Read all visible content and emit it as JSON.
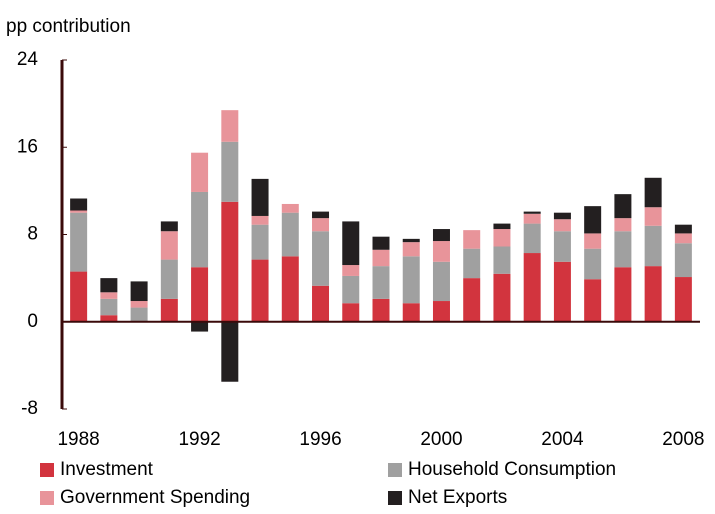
{
  "chart_data": {
    "type": "stacked_bar",
    "title": "pp contribution",
    "x": [
      1988,
      1989,
      1990,
      1991,
      1992,
      1993,
      1994,
      1995,
      1996,
      1997,
      1998,
      1999,
      2000,
      2001,
      2002,
      2003,
      2004,
      2005,
      2006,
      2007,
      2008
    ],
    "xlim": [
      1987.45,
      2008.55
    ],
    "xticks": [
      1988,
      1992,
      1996,
      2000,
      2004,
      2008
    ],
    "ylim": [
      -8,
      24
    ],
    "yticks": [
      -8,
      0,
      8,
      16,
      24
    ],
    "grid": false,
    "legend": "bottom",
    "series": [
      {
        "name": "Investment",
        "color": "#d2343e",
        "values": [
          4.6,
          0.6,
          0,
          2.1,
          5.0,
          11.0,
          5.7,
          6.0,
          3.3,
          1.7,
          2.1,
          1.7,
          1.9,
          4.0,
          4.4,
          6.3,
          5.5,
          3.9,
          5.0,
          5.1,
          4.1
        ]
      },
      {
        "name": "Household Consumption",
        "color": "#a0a0a0",
        "values": [
          5.4,
          1.5,
          1.3,
          3.6,
          6.9,
          5.5,
          3.2,
          4.0,
          5.0,
          2.5,
          3.0,
          4.3,
          3.6,
          2.7,
          2.5,
          2.7,
          2.8,
          2.8,
          3.3,
          3.7,
          3.1
        ]
      },
      {
        "name": "Government Spending",
        "color": "#e8949a",
        "values": [
          0.2,
          0.6,
          0.6,
          2.6,
          3.6,
          2.9,
          0.8,
          0.8,
          1.2,
          1.0,
          1.5,
          1.3,
          1.9,
          1.7,
          1.6,
          0.9,
          1.1,
          1.4,
          1.2,
          1.7,
          0.9
        ]
      },
      {
        "name": "Net Exports",
        "color": "#231f20",
        "values": [
          1.1,
          1.3,
          1.8,
          0.9,
          -0.9,
          -5.5,
          3.4,
          0,
          0.6,
          4.0,
          1.2,
          0.3,
          1.1,
          0,
          0.5,
          0.2,
          0.6,
          2.5,
          2.2,
          2.7,
          0.8
        ]
      }
    ]
  }
}
